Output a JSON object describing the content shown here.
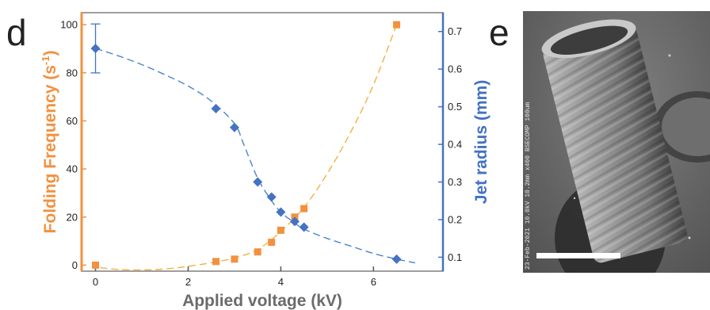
{
  "panels": {
    "chart_label": "d",
    "image_label": "e"
  },
  "chart_data": {
    "type": "scatter",
    "xlabel": "Applied voltage (kV)",
    "ylabel": "Folding Frequency (s",
    "ylabel_superscript": "-1",
    "ylabel_close": ")",
    "y2label": "Jet radius (mm)",
    "xlim": [
      -0.3,
      7.5
    ],
    "ylim": [
      -2.5,
      105
    ],
    "y2lim": [
      0.063,
      0.75
    ],
    "x_ticks": [
      0,
      2,
      4,
      6
    ],
    "y_ticks": [
      0,
      20,
      40,
      60,
      80,
      100
    ],
    "y2_ticks": [
      0.1,
      0.2,
      0.3,
      0.4,
      0.5,
      0.6,
      0.7
    ],
    "grid": false,
    "legend": "none",
    "colors": {
      "left_axis": "#f2913f",
      "right_axis": "#4472c4",
      "fit_left": "#f5b041",
      "fit_right": "#4a86c8"
    },
    "series": [
      {
        "axis": "left",
        "marker": "square",
        "color": "#f2913f",
        "x": [
          0,
          2.6,
          3.0,
          3.5,
          3.8,
          4.0,
          4.3,
          4.5,
          6.5
        ],
        "y": [
          0,
          1.5,
          2.5,
          5.5,
          9.5,
          14.5,
          20,
          23.5,
          100
        ]
      },
      {
        "axis": "right",
        "marker": "diamond",
        "color": "#4472c4",
        "x": [
          0,
          2.6,
          3.0,
          3.5,
          3.8,
          4.0,
          4.3,
          4.5,
          6.5
        ],
        "y": [
          0.655,
          0.495,
          0.445,
          0.3,
          0.26,
          0.22,
          0.195,
          0.18,
          0.095
        ],
        "error_bar": {
          "x": 0,
          "low": 0.59,
          "high": 0.72
        }
      }
    ],
    "fits": [
      {
        "axis": "left",
        "color": "#f5b041",
        "x": [
          0.1,
          0.5,
          1.0,
          1.5,
          2.0,
          2.5,
          3.0,
          3.5,
          4.0,
          4.5,
          5.0,
          5.5,
          6.0,
          6.5
        ],
        "y": [
          -1.0,
          -1.8,
          -2.0,
          -1.6,
          -0.5,
          1.0,
          3.0,
          6.5,
          14.0,
          24.0,
          38.0,
          55.0,
          75.0,
          100.0
        ]
      },
      {
        "axis": "right",
        "color": "#4a86c8",
        "x": [
          0,
          0.5,
          1.0,
          1.5,
          2.0,
          2.5,
          3.0,
          3.2,
          3.5,
          3.8,
          4.0,
          4.2,
          4.5,
          5.0,
          5.5,
          6.0,
          6.5,
          6.9
        ],
        "y": [
          0.655,
          0.635,
          0.612,
          0.585,
          0.555,
          0.515,
          0.455,
          0.4,
          0.31,
          0.25,
          0.22,
          0.2,
          0.175,
          0.15,
          0.13,
          0.11,
          0.095,
          0.085
        ]
      }
    ]
  },
  "sem_image": {
    "side_text": "23-Feb-2021 10.0kV 10.2mm x400 BSECOMP 100um",
    "scale_text": "100um"
  }
}
